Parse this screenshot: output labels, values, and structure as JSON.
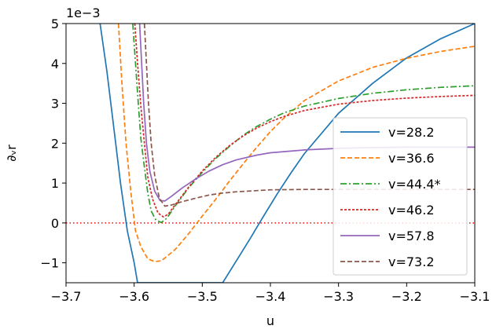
{
  "chart_data": {
    "type": "line",
    "xlabel": "u",
    "ylabel": "∂ᵥr",
    "y_scale_label": "1e−3",
    "xlim": [
      -3.7,
      -3.1
    ],
    "ylim": [
      -1.5,
      5
    ],
    "x_ticks": [
      {
        "value": -3.7,
        "label": "−3.7"
      },
      {
        "value": -3.6,
        "label": "−3.6"
      },
      {
        "value": -3.5,
        "label": "−3.5"
      },
      {
        "value": -3.4,
        "label": "−3.4"
      },
      {
        "value": -3.3,
        "label": "−3.3"
      },
      {
        "value": -3.2,
        "label": "−3.2"
      },
      {
        "value": -3.1,
        "label": "−3.1"
      }
    ],
    "y_ticks": [
      {
        "value": -1,
        "label": "−1"
      },
      {
        "value": 0,
        "label": "0"
      },
      {
        "value": 1,
        "label": "1"
      },
      {
        "value": 2,
        "label": "2"
      },
      {
        "value": 3,
        "label": "3"
      },
      {
        "value": 4,
        "label": "4"
      },
      {
        "value": 5,
        "label": "5"
      }
    ],
    "reference_line": {
      "y": 0,
      "color": "#ff0000",
      "style": "dotted"
    },
    "legend_position": "center-right",
    "series": [
      {
        "name": "v=28.2",
        "color": "#1f77b4",
        "dash": "solid",
        "points": [
          [
            -3.65,
            5.0
          ],
          [
            -3.64,
            3.8
          ],
          [
            -3.63,
            2.4
          ],
          [
            -3.62,
            1.0
          ],
          [
            -3.61,
            -0.2
          ],
          [
            -3.6,
            -1.0
          ],
          [
            -3.595,
            -1.5
          ],
          [
            -3.47,
            -1.5
          ],
          [
            -3.45,
            -0.95
          ],
          [
            -3.43,
            -0.4
          ],
          [
            -3.41,
            0.17
          ],
          [
            -3.39,
            0.73
          ],
          [
            -3.37,
            1.25
          ],
          [
            -3.35,
            1.74
          ],
          [
            -3.3,
            2.75
          ],
          [
            -3.25,
            3.5
          ],
          [
            -3.2,
            4.14
          ],
          [
            -3.15,
            4.62
          ],
          [
            -3.1,
            5.0
          ]
        ]
      },
      {
        "name": "v=36.6",
        "color": "#ff7f0e",
        "dash": "6,3",
        "points": [
          [
            -3.623,
            5.0
          ],
          [
            -3.618,
            3.5
          ],
          [
            -3.612,
            2.0
          ],
          [
            -3.605,
            0.8
          ],
          [
            -3.598,
            -0.2
          ],
          [
            -3.59,
            -0.6
          ],
          [
            -3.58,
            -0.9
          ],
          [
            -3.57,
            -0.97
          ],
          [
            -3.56,
            -0.95
          ],
          [
            -3.54,
            -0.67
          ],
          [
            -3.52,
            -0.27
          ],
          [
            -3.5,
            0.17
          ],
          [
            -3.48,
            0.6
          ],
          [
            -3.46,
            1.05
          ],
          [
            -3.44,
            1.48
          ],
          [
            -3.42,
            1.9
          ],
          [
            -3.4,
            2.29
          ],
          [
            -3.38,
            2.63
          ],
          [
            -3.35,
            3.07
          ],
          [
            -3.3,
            3.56
          ],
          [
            -3.25,
            3.9
          ],
          [
            -3.2,
            4.13
          ],
          [
            -3.15,
            4.3
          ],
          [
            -3.1,
            4.43
          ]
        ]
      },
      {
        "name": "v=44.4*",
        "color": "#2ca02c",
        "dash": "8,3,2,3",
        "points": [
          [
            -3.602,
            5.0
          ],
          [
            -3.598,
            4.0
          ],
          [
            -3.594,
            3.0
          ],
          [
            -3.59,
            2.1
          ],
          [
            -3.585,
            1.4
          ],
          [
            -3.58,
            0.75
          ],
          [
            -3.575,
            0.3
          ],
          [
            -3.568,
            0.07
          ],
          [
            -3.56,
            0.01
          ],
          [
            -3.552,
            0.12
          ],
          [
            -3.54,
            0.42
          ],
          [
            -3.52,
            0.88
          ],
          [
            -3.5,
            1.27
          ],
          [
            -3.48,
            1.62
          ],
          [
            -3.46,
            1.92
          ],
          [
            -3.44,
            2.2
          ],
          [
            -3.42,
            2.42
          ],
          [
            -3.4,
            2.6
          ],
          [
            -3.38,
            2.76
          ],
          [
            -3.35,
            2.93
          ],
          [
            -3.3,
            3.12
          ],
          [
            -3.25,
            3.25
          ],
          [
            -3.2,
            3.34
          ],
          [
            -3.15,
            3.4
          ],
          [
            -3.1,
            3.44
          ]
        ]
      },
      {
        "name": "v=46.2",
        "color": "#d62728",
        "dash": "3,2",
        "points": [
          [
            -3.599,
            5.0
          ],
          [
            -3.595,
            4.0
          ],
          [
            -3.59,
            2.9
          ],
          [
            -3.585,
            2.0
          ],
          [
            -3.58,
            1.15
          ],
          [
            -3.573,
            0.6
          ],
          [
            -3.565,
            0.25
          ],
          [
            -3.557,
            0.15
          ],
          [
            -3.55,
            0.22
          ],
          [
            -3.54,
            0.45
          ],
          [
            -3.52,
            0.9
          ],
          [
            -3.5,
            1.3
          ],
          [
            -3.48,
            1.65
          ],
          [
            -3.46,
            1.94
          ],
          [
            -3.44,
            2.18
          ],
          [
            -3.42,
            2.38
          ],
          [
            -3.4,
            2.54
          ],
          [
            -3.38,
            2.67
          ],
          [
            -3.35,
            2.82
          ],
          [
            -3.3,
            2.98
          ],
          [
            -3.25,
            3.07
          ],
          [
            -3.2,
            3.13
          ],
          [
            -3.15,
            3.17
          ],
          [
            -3.1,
            3.2
          ]
        ]
      },
      {
        "name": "v=57.8",
        "color": "#9467bd",
        "dash": "solid",
        "points": [
          [
            -3.592,
            5.0
          ],
          [
            -3.589,
            4.0
          ],
          [
            -3.586,
            3.0
          ],
          [
            -3.582,
            2.0
          ],
          [
            -3.577,
            1.3
          ],
          [
            -3.57,
            0.8
          ],
          [
            -3.562,
            0.56
          ],
          [
            -3.555,
            0.55
          ],
          [
            -3.545,
            0.67
          ],
          [
            -3.53,
            0.87
          ],
          [
            -3.51,
            1.1
          ],
          [
            -3.49,
            1.3
          ],
          [
            -3.47,
            1.46
          ],
          [
            -3.45,
            1.58
          ],
          [
            -3.42,
            1.7
          ],
          [
            -3.4,
            1.76
          ],
          [
            -3.35,
            1.83
          ],
          [
            -3.3,
            1.87
          ],
          [
            -3.25,
            1.89
          ],
          [
            -3.2,
            1.9
          ],
          [
            -3.15,
            1.9
          ],
          [
            -3.1,
            1.9
          ]
        ]
      },
      {
        "name": "v=73.2",
        "color": "#8c564b",
        "dash": "6,3",
        "points": [
          [
            -3.585,
            5.0
          ],
          [
            -3.582,
            4.0
          ],
          [
            -3.579,
            3.0
          ],
          [
            -3.575,
            2.0
          ],
          [
            -3.57,
            1.2
          ],
          [
            -3.563,
            0.62
          ],
          [
            -3.555,
            0.42
          ],
          [
            -3.545,
            0.45
          ],
          [
            -3.53,
            0.53
          ],
          [
            -3.51,
            0.62
          ],
          [
            -3.49,
            0.7
          ],
          [
            -3.47,
            0.75
          ],
          [
            -3.45,
            0.78
          ],
          [
            -3.42,
            0.81
          ],
          [
            -3.4,
            0.83
          ],
          [
            -3.35,
            0.84
          ],
          [
            -3.3,
            0.84
          ],
          [
            -3.25,
            0.84
          ],
          [
            -3.2,
            0.84
          ],
          [
            -3.15,
            0.84
          ],
          [
            -3.1,
            0.84
          ]
        ]
      }
    ]
  }
}
